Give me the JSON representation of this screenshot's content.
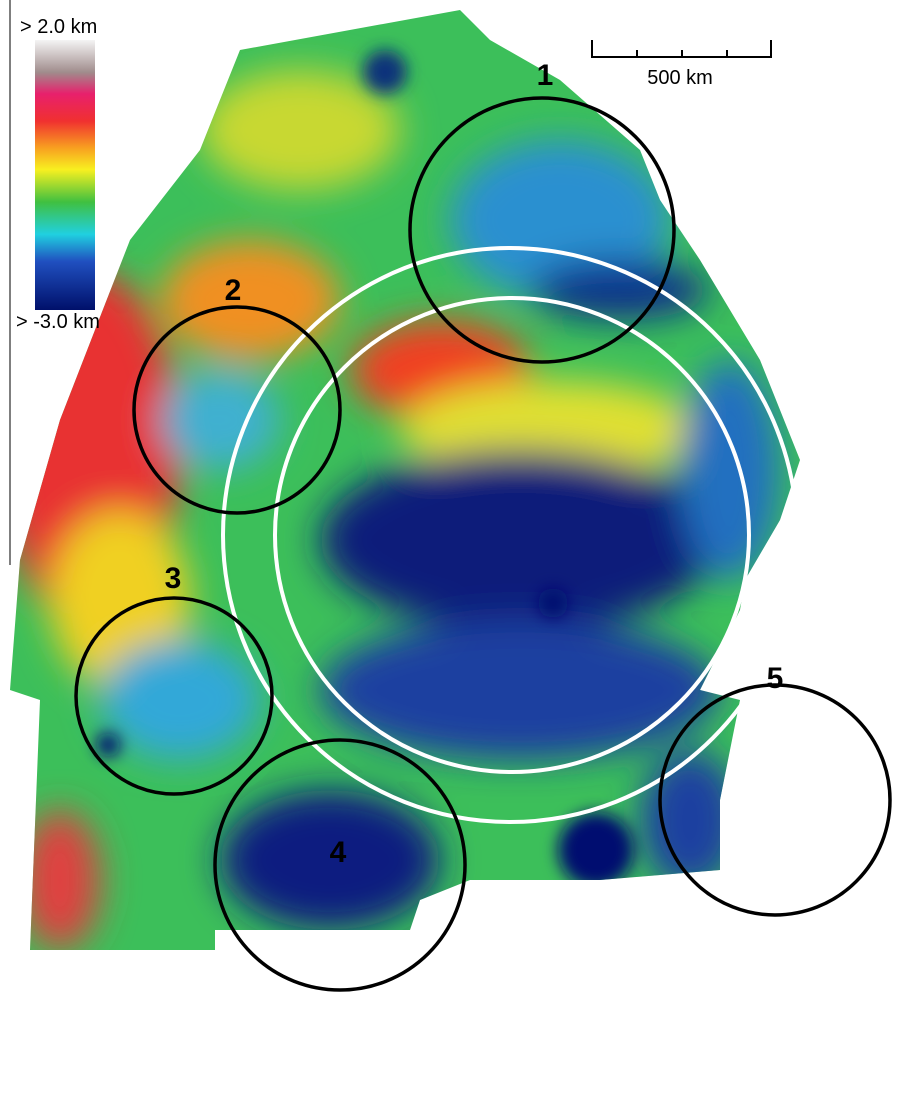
{
  "legend": {
    "max_label": "> 2.0 km",
    "min_label": "> -3.0 km"
  },
  "scale_bar": {
    "label": "500 km"
  },
  "regions": [
    {
      "label": "1"
    },
    {
      "label": "2"
    },
    {
      "label": "3"
    },
    {
      "label": "4"
    },
    {
      "label": "5"
    }
  ]
}
